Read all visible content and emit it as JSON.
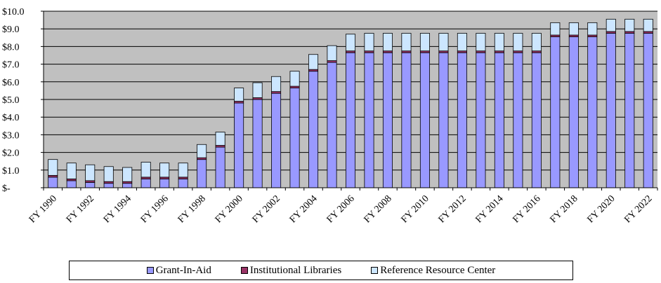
{
  "chart_data": {
    "type": "bar",
    "stacked": true,
    "categories": [
      "FY 1990",
      "FY 1991",
      "FY 1992",
      "FY 1993",
      "FY 1994",
      "FY 1995",
      "FY 1996",
      "FY 1997",
      "FY 1998",
      "FY 1999",
      "FY 2000",
      "FY 2001",
      "FY 2002",
      "FY 2003",
      "FY 2004",
      "FY 2005",
      "FY 2006",
      "FY 2007",
      "FY 2008",
      "FY 2009",
      "FY 2010",
      "FY 2011",
      "FY 2012",
      "FY 2013",
      "FY 2014",
      "FY 2015",
      "FY 2016",
      "FY 2017",
      "FY 2018",
      "FY 2019",
      "FY 2020",
      "FY 2021",
      "FY 2022"
    ],
    "x_tick_labels": [
      "FY 1990",
      "FY 1992",
      "FY 1994",
      "FY 1996",
      "FY 1998",
      "FY 2000",
      "FY 2002",
      "FY 2004",
      "FY 2006",
      "FY 2008",
      "FY 2010",
      "FY 2012",
      "FY 2014",
      "FY 2016",
      "FY 2018",
      "FY 2020",
      "FY 2022"
    ],
    "series": [
      {
        "name": "Grant-In-Aid",
        "color": "#9999ff",
        "values": [
          0.6,
          0.4,
          0.3,
          0.25,
          0.25,
          0.5,
          0.5,
          0.5,
          1.6,
          2.3,
          4.8,
          5.0,
          5.35,
          5.65,
          6.6,
          7.1,
          7.65,
          7.65,
          7.65,
          7.65,
          7.65,
          7.65,
          7.65,
          7.65,
          7.65,
          7.65,
          7.65,
          8.55,
          8.55,
          8.55,
          8.75,
          8.75,
          8.75
        ]
      },
      {
        "name": "Institutional Libraries",
        "color": "#993366",
        "values": [
          0.1,
          0.1,
          0.1,
          0.1,
          0.1,
          0.1,
          0.1,
          0.1,
          0.1,
          0.1,
          0.1,
          0.1,
          0.1,
          0.1,
          0.1,
          0.1,
          0.1,
          0.1,
          0.1,
          0.1,
          0.1,
          0.1,
          0.1,
          0.1,
          0.1,
          0.1,
          0.1,
          0.1,
          0.1,
          0.1,
          0.1,
          0.1,
          0.1
        ]
      },
      {
        "name": "Reference Resource Center",
        "color": "#cce6ff",
        "values": [
          0.9,
          0.9,
          0.9,
          0.85,
          0.8,
          0.85,
          0.8,
          0.8,
          0.75,
          0.75,
          0.75,
          0.85,
          0.85,
          0.85,
          0.85,
          0.85,
          0.95,
          1.0,
          1.0,
          1.0,
          1.0,
          1.0,
          1.0,
          1.0,
          1.0,
          1.0,
          1.0,
          0.7,
          0.7,
          0.7,
          0.7,
          0.7,
          0.7
        ]
      }
    ],
    "y_tick_labels": [
      "$-",
      "$1.0",
      "$2.0",
      "$3.0",
      "$4.0",
      "$5.0",
      "$6.0",
      "$7.0",
      "$8.0",
      "$9.0",
      "$10.0"
    ],
    "ylim": [
      0,
      10
    ],
    "grid": true,
    "legend_position": "bottom",
    "plot_background": "#c0c0c0",
    "title": "",
    "xlabel": "",
    "ylabel": ""
  }
}
